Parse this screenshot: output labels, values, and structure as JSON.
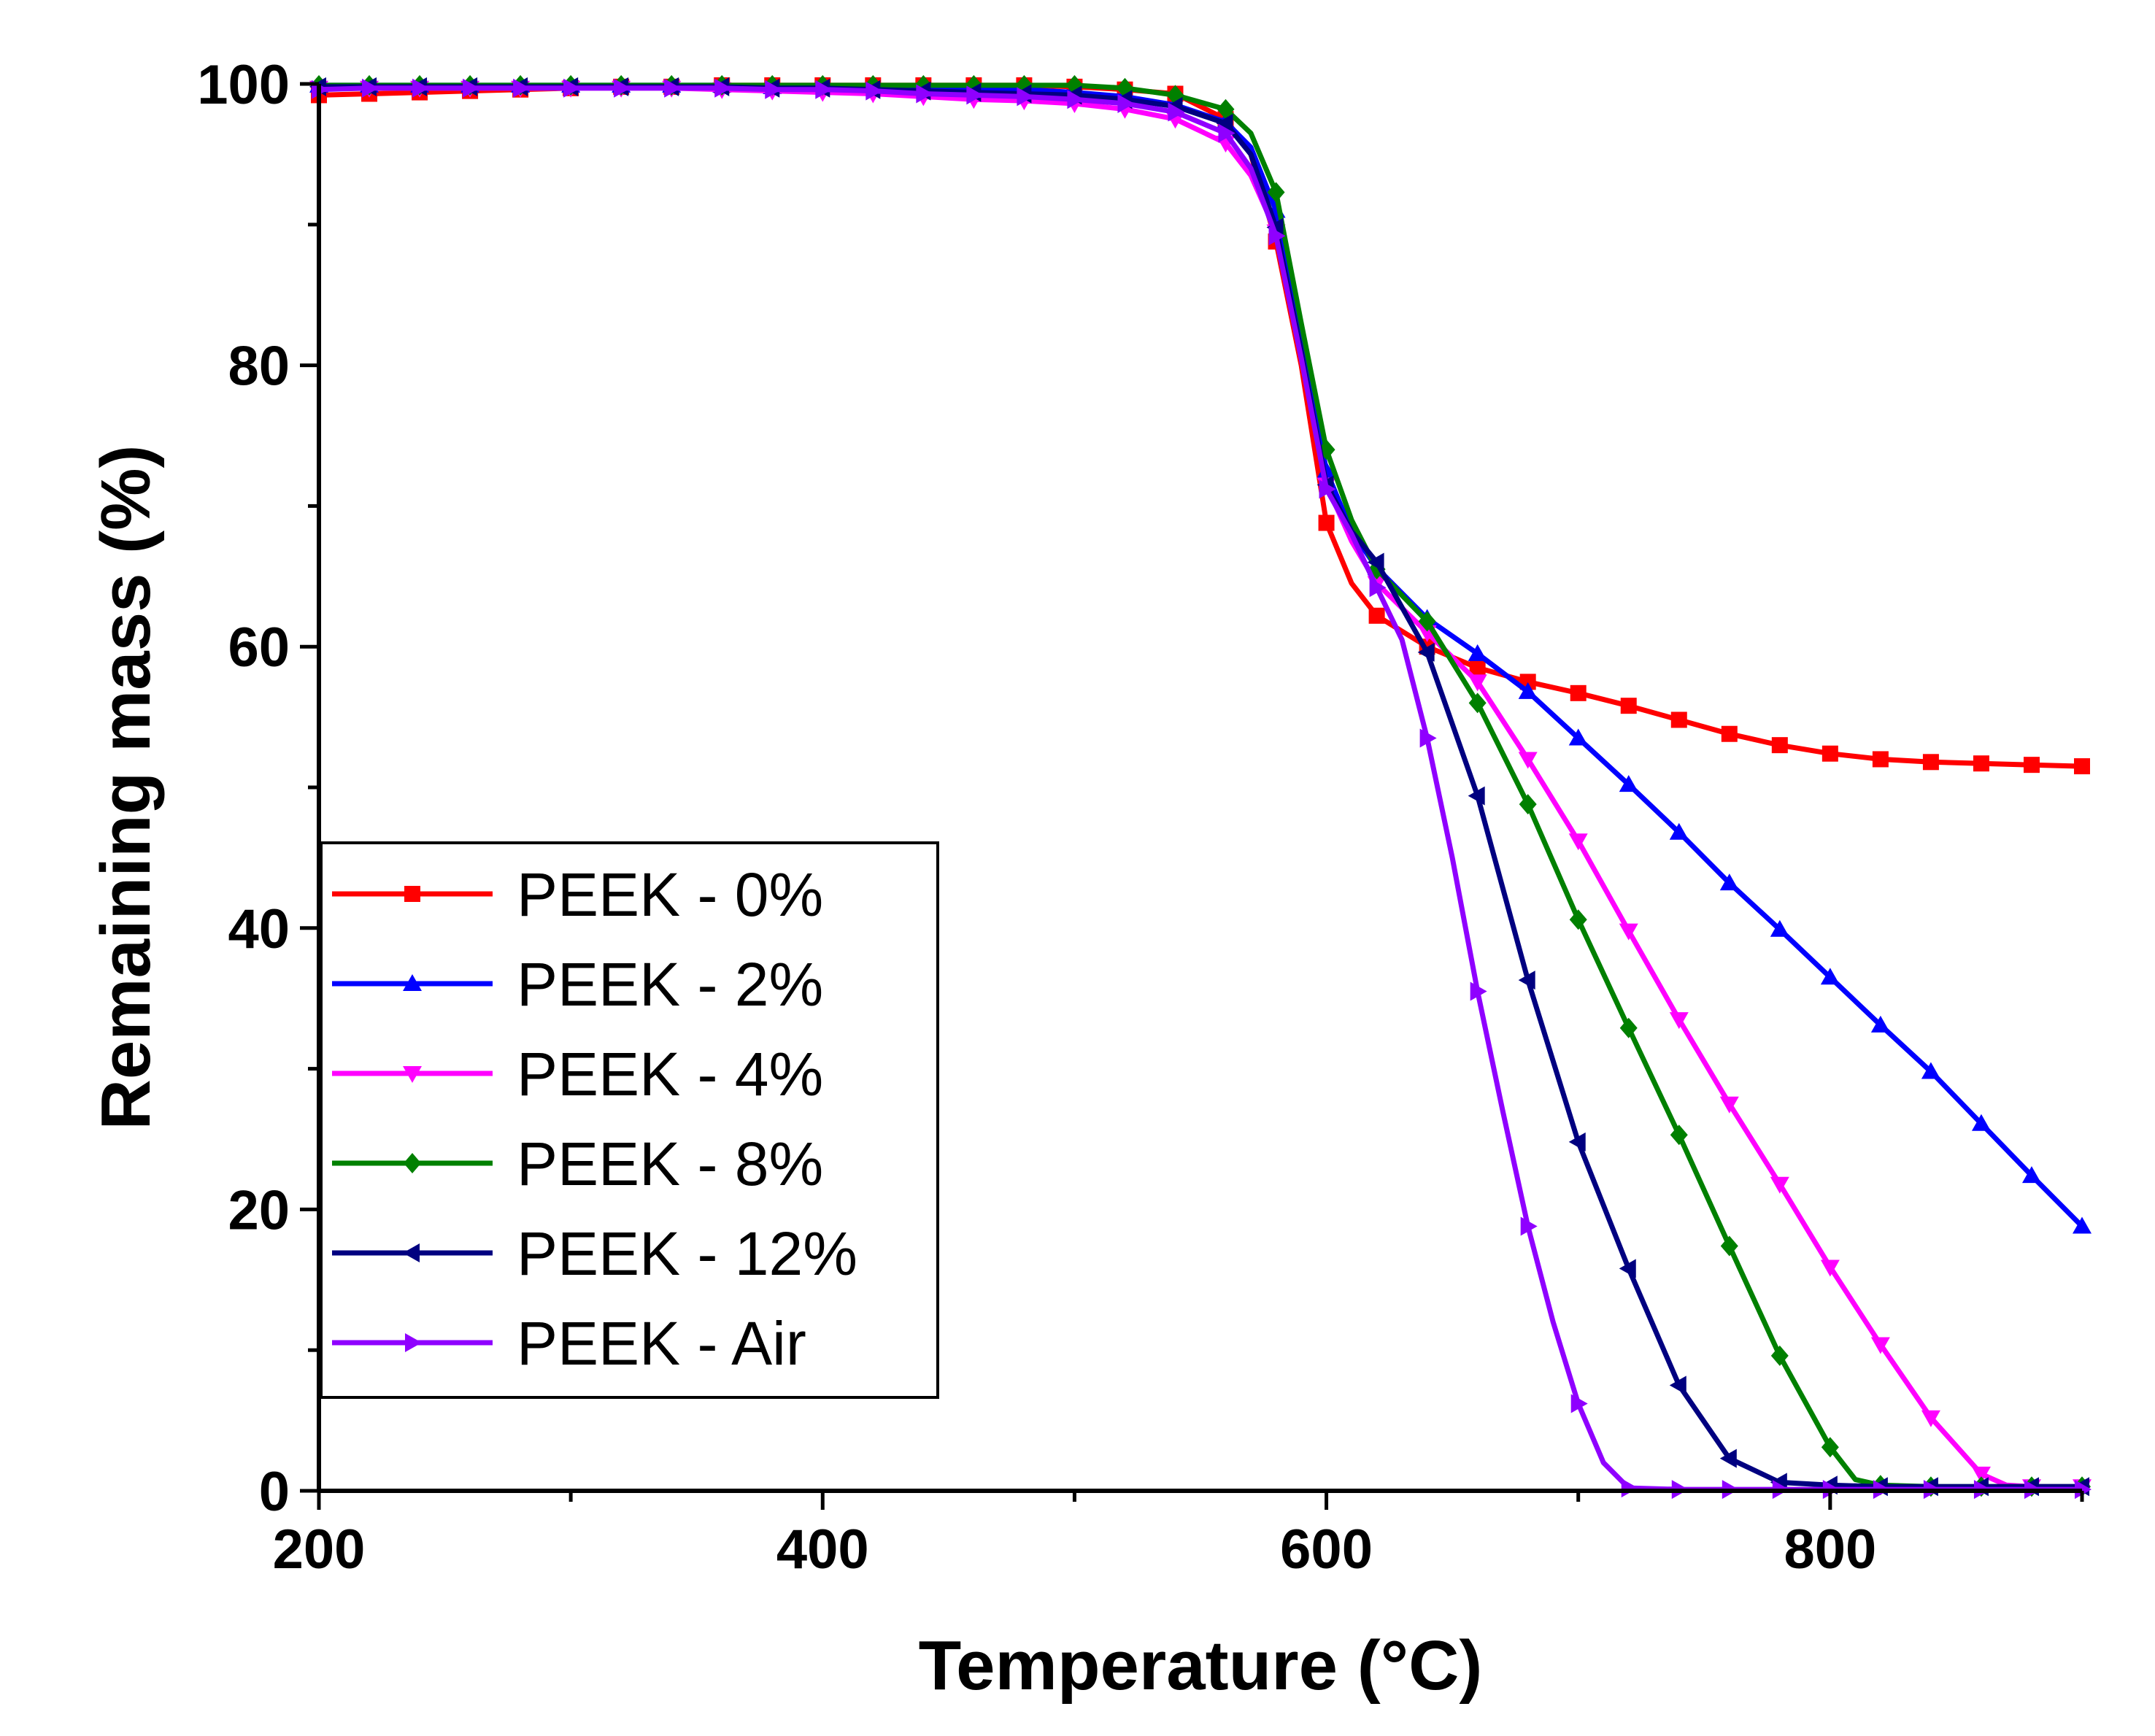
{
  "chart_data": {
    "type": "line",
    "title": "",
    "xlabel": "Temperature (°C)",
    "ylabel": "Remaining mass (%)",
    "xlim": [
      200,
      900
    ],
    "ylim": [
      0,
      100
    ],
    "x_ticks": [
      200,
      400,
      600,
      800
    ],
    "y_ticks": [
      0,
      20,
      40,
      60,
      80,
      100
    ],
    "x_tick_labels": [
      "200",
      "400",
      "600",
      "800"
    ],
    "y_tick_labels": [
      "0",
      "20",
      "40",
      "60",
      "80",
      "100"
    ],
    "legend_position": "bottom-left",
    "series": [
      {
        "name": "PEEK - 0%",
        "color": "#ff0000",
        "marker": "square",
        "x": [
          200,
          220,
          240,
          260,
          280,
          300,
          320,
          340,
          360,
          380,
          400,
          420,
          440,
          460,
          480,
          500,
          520,
          540,
          560,
          570,
          580,
          590,
          600,
          610,
          620,
          640,
          660,
          680,
          700,
          720,
          740,
          760,
          780,
          800,
          820,
          840,
          860,
          880,
          900
        ],
        "y": [
          99.2,
          99.3,
          99.4,
          99.5,
          99.6,
          99.7,
          99.8,
          99.8,
          99.9,
          99.9,
          99.9,
          99.9,
          99.9,
          99.9,
          99.9,
          99.8,
          99.6,
          99.3,
          97.5,
          95,
          88.8,
          80,
          68.8,
          64.5,
          62.2,
          60,
          58.5,
          57.5,
          56.7,
          55.8,
          54.8,
          53.8,
          53,
          52.4,
          52,
          51.8,
          51.7,
          51.6,
          51.5
        ]
      },
      {
        "name": "PEEK - 2%",
        "color": "#0000ff",
        "marker": "triangle-up",
        "x": [
          200,
          220,
          240,
          260,
          280,
          300,
          320,
          340,
          360,
          380,
          400,
          420,
          440,
          460,
          480,
          500,
          520,
          540,
          560,
          570,
          580,
          590,
          600,
          610,
          620,
          640,
          660,
          680,
          700,
          720,
          740,
          760,
          780,
          800,
          820,
          840,
          860,
          880,
          900
        ],
        "y": [
          99.9,
          99.9,
          99.9,
          99.9,
          99.9,
          99.9,
          99.9,
          99.9,
          99.9,
          99.8,
          99.8,
          99.8,
          99.8,
          99.7,
          99.6,
          99.4,
          99.1,
          98.5,
          97.3,
          95.5,
          91,
          82,
          72.5,
          68.2,
          65.6,
          62,
          59.5,
          56.8,
          53.5,
          50.2,
          46.8,
          43.2,
          39.9,
          36.5,
          33.1,
          29.8,
          26.1,
          22.4,
          18.8
        ]
      },
      {
        "name": "PEEK - 4%",
        "color": "#ff00ff",
        "marker": "triangle-down",
        "x": [
          200,
          220,
          240,
          260,
          280,
          300,
          320,
          340,
          360,
          380,
          400,
          420,
          440,
          460,
          480,
          500,
          520,
          540,
          560,
          570,
          580,
          590,
          600,
          610,
          620,
          640,
          660,
          680,
          700,
          720,
          740,
          760,
          780,
          800,
          820,
          840,
          860,
          870,
          880,
          900
        ],
        "y": [
          99.7,
          99.7,
          99.7,
          99.7,
          99.7,
          99.7,
          99.7,
          99.7,
          99.6,
          99.5,
          99.4,
          99.3,
          99.1,
          98.9,
          98.8,
          98.6,
          98.2,
          97.5,
          95.8,
          93.5,
          89.5,
          80.5,
          71.5,
          67.5,
          64.5,
          61,
          57.5,
          52,
          46.2,
          39.8,
          33.5,
          27.5,
          21.8,
          15.9,
          10.4,
          5.2,
          1.2,
          0.4,
          0.3,
          0.3
        ]
      },
      {
        "name": "PEEK - 8%",
        "color": "#008000",
        "marker": "diamond",
        "x": [
          200,
          220,
          240,
          260,
          280,
          300,
          320,
          340,
          360,
          380,
          400,
          420,
          440,
          460,
          480,
          500,
          520,
          540,
          560,
          570,
          580,
          590,
          600,
          610,
          620,
          640,
          660,
          680,
          700,
          720,
          740,
          760,
          780,
          800,
          810,
          820,
          840,
          860,
          880,
          900
        ],
        "y": [
          99.9,
          99.9,
          99.9,
          99.9,
          99.9,
          99.9,
          99.9,
          99.9,
          99.9,
          99.9,
          99.9,
          99.9,
          99.9,
          99.9,
          99.9,
          99.9,
          99.7,
          99.2,
          98.2,
          96.5,
          92.3,
          83,
          74,
          69,
          65.5,
          61.8,
          56,
          48.8,
          40.6,
          32.9,
          25.3,
          17.4,
          9.6,
          3.1,
          0.8,
          0.4,
          0.3,
          0.3,
          0.3,
          0.3
        ]
      },
      {
        "name": "PEEK - 12%",
        "color": "#000080",
        "marker": "triangle-left",
        "x": [
          200,
          220,
          240,
          260,
          280,
          300,
          320,
          340,
          360,
          380,
          400,
          420,
          440,
          460,
          480,
          500,
          520,
          540,
          560,
          570,
          580,
          590,
          600,
          610,
          620,
          640,
          660,
          680,
          700,
          720,
          740,
          760,
          780,
          800,
          820,
          840,
          860,
          880,
          900
        ],
        "y": [
          99.8,
          99.8,
          99.8,
          99.8,
          99.8,
          99.8,
          99.8,
          99.8,
          99.8,
          99.7,
          99.7,
          99.6,
          99.5,
          99.4,
          99.3,
          99.2,
          98.9,
          98.4,
          97.2,
          95,
          89.8,
          81,
          71.5,
          68.2,
          66,
          59.6,
          49.4,
          36.3,
          24.8,
          15.8,
          7.5,
          2.3,
          0.6,
          0.4,
          0.3,
          0.3,
          0.3,
          0.3,
          0.3
        ]
      },
      {
        "name": "PEEK - Air",
        "color": "#8f00ff",
        "marker": "triangle-right",
        "x": [
          200,
          220,
          240,
          260,
          280,
          300,
          320,
          340,
          360,
          380,
          400,
          420,
          440,
          460,
          480,
          500,
          520,
          540,
          560,
          570,
          580,
          590,
          600,
          610,
          620,
          630,
          640,
          650,
          660,
          670,
          680,
          690,
          700,
          710,
          720,
          740,
          760,
          780,
          800,
          820,
          840,
          860,
          880,
          900
        ],
        "y": [
          99.6,
          99.7,
          99.7,
          99.7,
          99.7,
          99.7,
          99.7,
          99.7,
          99.7,
          99.6,
          99.6,
          99.5,
          99.3,
          99.2,
          99.1,
          98.9,
          98.6,
          98,
          96.5,
          94,
          89.2,
          80.5,
          71.2,
          68,
          64.2,
          60.5,
          53.5,
          45,
          35.5,
          27,
          18.8,
          12,
          6.2,
          2,
          0.2,
          0.1,
          0.1,
          0.1,
          0.1,
          0.1,
          0.1,
          0.1,
          0.1,
          0.1
        ]
      }
    ]
  }
}
